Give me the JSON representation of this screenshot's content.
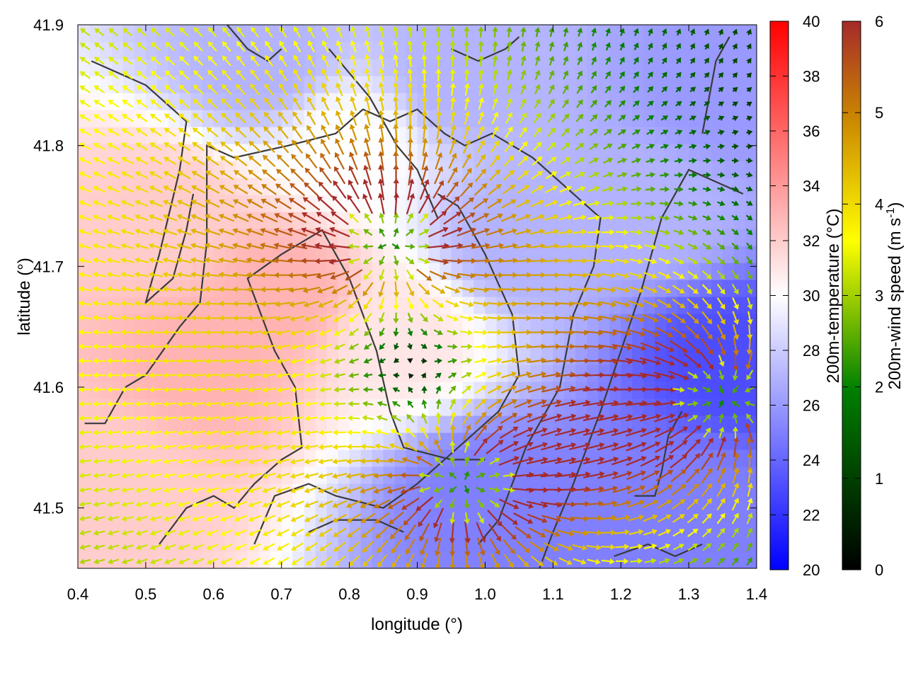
{
  "chart_data": {
    "type": "heatmap",
    "xlabel": "longitude (°)",
    "ylabel": "latitude (°)",
    "xlim": [
      0.4,
      1.4
    ],
    "ylim": [
      41.45,
      41.9
    ],
    "xticks": [
      "0.4",
      "0.5",
      "0.6",
      "0.7",
      "0.8",
      "0.9",
      "1.0",
      "1.1",
      "1.2",
      "1.3",
      "1.4"
    ],
    "yticks": [
      "41.5",
      "41.6",
      "41.7",
      "41.8",
      "41.9"
    ],
    "temperature_colorbar": {
      "label": "200m-temperature (°C)",
      "range": [
        20,
        40
      ],
      "ticks": [
        "20",
        "22",
        "24",
        "26",
        "28",
        "30",
        "32",
        "34",
        "36",
        "38",
        "40"
      ],
      "colors": [
        "#0000ff",
        "#ffffff",
        "#ff0000"
      ]
    },
    "wind_colorbar": {
      "label": "200m-wind speed (m s-1)",
      "range": [
        0,
        6
      ],
      "ticks": [
        "0",
        "1",
        "2",
        "3",
        "4",
        "5",
        "6"
      ],
      "colors": [
        "#000000",
        "#008000",
        "#ffff00",
        "#cc8800",
        "#a52a2a"
      ]
    },
    "temperature_features": [
      {
        "lon": 0.58,
        "lat": 41.62,
        "temp": 33
      },
      {
        "lon": 0.7,
        "lat": 41.68,
        "temp": 33
      },
      {
        "lon": 0.53,
        "lat": 41.74,
        "temp": 32
      },
      {
        "lon": 0.46,
        "lat": 41.52,
        "temp": 32
      },
      {
        "lon": 0.88,
        "lat": 41.64,
        "temp": 31
      },
      {
        "lon": 0.8,
        "lat": 41.8,
        "temp": 30
      },
      {
        "lon": 0.96,
        "lat": 41.86,
        "temp": 27
      },
      {
        "lon": 0.67,
        "lat": 41.87,
        "temp": 27
      },
      {
        "lon": 1.0,
        "lat": 41.51,
        "temp": 25
      },
      {
        "lon": 1.05,
        "lat": 41.72,
        "temp": 27
      },
      {
        "lon": 1.36,
        "lat": 41.62,
        "temp": 23
      },
      {
        "lon": 1.3,
        "lat": 41.5,
        "temp": 25
      },
      {
        "lon": 1.12,
        "lat": 41.47,
        "temp": 25
      },
      {
        "lon": 1.25,
        "lat": 41.75,
        "temp": 27
      },
      {
        "lon": 1.35,
        "lat": 41.84,
        "temp": 26
      }
    ],
    "wind_flow_sources": [
      {
        "lon": 0.86,
        "lat": 41.72,
        "strength": 1
      },
      {
        "lon": 0.97,
        "lat": 41.52,
        "strength": 1
      },
      {
        "lon": 1.35,
        "lat": 41.59,
        "strength": -1
      }
    ],
    "contours": [
      [
        [
          0.42,
          41.87
        ],
        [
          0.5,
          41.85
        ],
        [
          0.56,
          41.82
        ],
        [
          0.55,
          41.78
        ],
        [
          0.52,
          41.71
        ],
        [
          0.5,
          41.67
        ],
        [
          0.54,
          41.69
        ],
        [
          0.56,
          41.73
        ],
        [
          0.57,
          41.76
        ]
      ],
      [
        [
          0.41,
          41.57
        ],
        [
          0.44,
          41.57
        ],
        [
          0.47,
          41.6
        ],
        [
          0.5,
          41.61
        ],
        [
          0.55,
          41.65
        ],
        [
          0.58,
          41.67
        ],
        [
          0.59,
          41.72
        ],
        [
          0.59,
          41.8
        ],
        [
          0.63,
          41.79
        ],
        [
          0.71,
          41.8
        ],
        [
          0.78,
          41.81
        ],
        [
          0.82,
          41.83
        ],
        [
          0.86,
          41.82
        ],
        [
          0.9,
          41.83
        ],
        [
          0.94,
          41.81
        ],
        [
          0.97,
          41.8
        ],
        [
          1.01,
          41.81
        ],
        [
          1.07,
          41.79
        ],
        [
          1.13,
          41.76
        ],
        [
          1.17,
          41.74
        ],
        [
          1.16,
          41.7
        ],
        [
          1.13,
          41.66
        ],
        [
          1.11,
          41.6
        ],
        [
          1.06,
          41.55
        ],
        [
          1.02,
          41.49
        ],
        [
          0.99,
          41.47
        ]
      ],
      [
        [
          0.52,
          41.47
        ],
        [
          0.56,
          41.5
        ],
        [
          0.6,
          41.51
        ],
        [
          0.63,
          41.5
        ],
        [
          0.66,
          41.52
        ],
        [
          0.7,
          41.54
        ],
        [
          0.73,
          41.55
        ],
        [
          0.72,
          41.6
        ],
        [
          0.69,
          41.63
        ],
        [
          0.67,
          41.66
        ],
        [
          0.65,
          41.69
        ],
        [
          0.7,
          41.71
        ],
        [
          0.76,
          41.73
        ],
        [
          0.8,
          41.69
        ],
        [
          0.82,
          41.66
        ],
        [
          0.84,
          41.63
        ],
        [
          0.86,
          41.58
        ],
        [
          0.88,
          41.55
        ],
        [
          0.95,
          41.54
        ],
        [
          1.0,
          41.54
        ]
      ],
      [
        [
          0.66,
          41.47
        ],
        [
          0.69,
          41.51
        ],
        [
          0.74,
          41.52
        ],
        [
          0.78,
          41.51
        ],
        [
          0.85,
          41.5
        ],
        [
          0.9,
          41.52
        ],
        [
          0.94,
          41.54
        ],
        [
          0.98,
          41.56
        ],
        [
          1.02,
          41.58
        ],
        [
          1.05,
          41.61
        ],
        [
          1.04,
          41.66
        ],
        [
          1.0,
          41.71
        ],
        [
          0.96,
          41.75
        ],
        [
          0.93,
          41.76
        ]
      ],
      [
        [
          0.77,
          41.88
        ],
        [
          0.8,
          41.86
        ],
        [
          0.83,
          41.84
        ],
        [
          0.87,
          41.8
        ],
        [
          0.9,
          41.78
        ],
        [
          0.93,
          41.74
        ]
      ],
      [
        [
          1.08,
          41.45
        ],
        [
          1.1,
          41.48
        ],
        [
          1.13,
          41.52
        ],
        [
          1.17,
          41.58
        ],
        [
          1.2,
          41.63
        ],
        [
          1.23,
          41.68
        ],
        [
          1.26,
          41.74
        ],
        [
          1.3,
          41.78
        ],
        [
          1.34,
          41.77
        ],
        [
          1.38,
          41.76
        ]
      ],
      [
        [
          0.74,
          41.48
        ],
        [
          0.78,
          41.49
        ],
        [
          0.84,
          41.49
        ],
        [
          0.88,
          41.48
        ]
      ],
      [
        [
          1.19,
          41.46
        ],
        [
          1.24,
          41.47
        ],
        [
          1.28,
          41.46
        ],
        [
          1.32,
          41.47
        ]
      ],
      [
        [
          1.22,
          41.51
        ],
        [
          1.25,
          41.51
        ],
        [
          1.26,
          41.53
        ],
        [
          1.27,
          41.56
        ],
        [
          1.29,
          41.58
        ]
      ],
      [
        [
          1.32,
          41.81
        ],
        [
          1.33,
          41.84
        ],
        [
          1.34,
          41.87
        ],
        [
          1.36,
          41.89
        ]
      ],
      [
        [
          0.62,
          41.9
        ],
        [
          0.65,
          41.88
        ],
        [
          0.68,
          41.87
        ],
        [
          0.7,
          41.88
        ]
      ],
      [
        [
          0.95,
          41.88
        ],
        [
          0.99,
          41.87
        ],
        [
          1.03,
          41.88
        ],
        [
          1.05,
          41.89
        ]
      ]
    ]
  }
}
